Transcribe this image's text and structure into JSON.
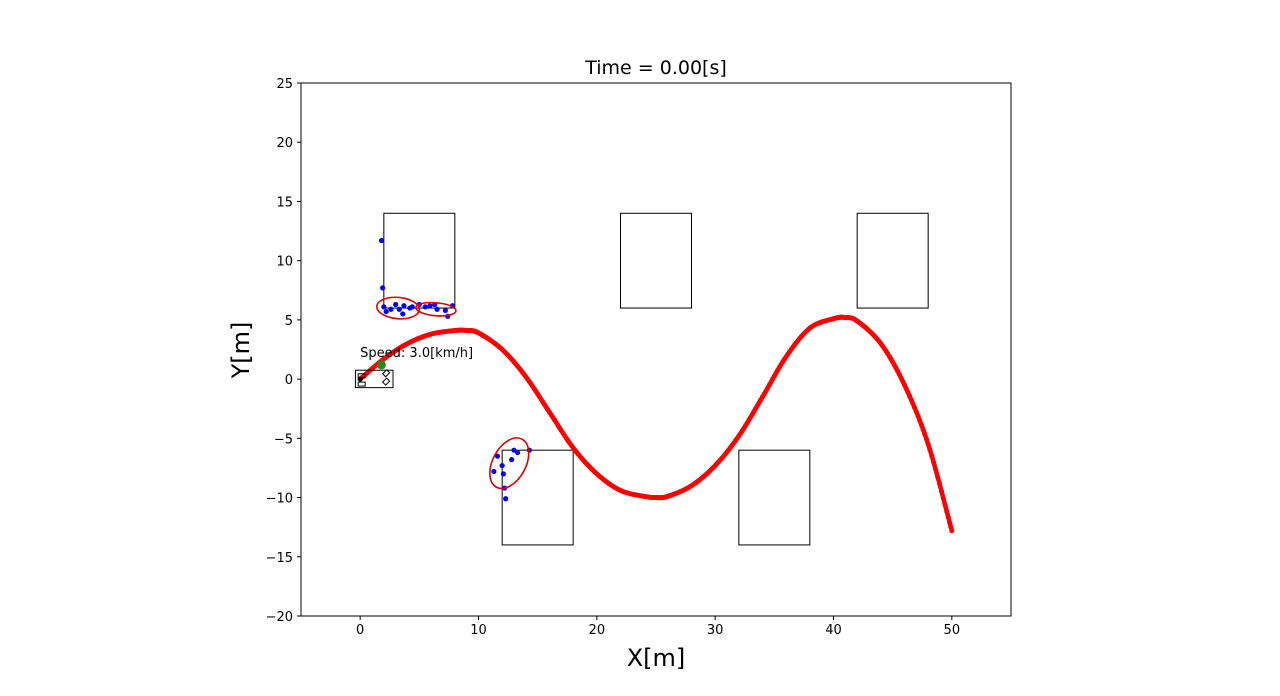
{
  "chart_data": {
    "type": "scatter",
    "title": "Time = 0.00[s]",
    "xlabel": "X[m]",
    "ylabel": "Y[m]",
    "xlim": [
      -5,
      55
    ],
    "ylim": [
      -20,
      25
    ],
    "xticks": [
      0,
      10,
      20,
      30,
      40,
      50
    ],
    "yticks": [
      -20,
      -15,
      -10,
      -5,
      0,
      5,
      10,
      15,
      20,
      25
    ],
    "grid": false,
    "annotation": "Speed: 3.0[km/h]",
    "colors": {
      "path": "#ff0000",
      "points": "#0000ff",
      "ellipse": "#dd0000",
      "vehicle_marker": "#228B22",
      "obstacle": "#000000"
    },
    "obstacles": [
      {
        "x0": 2,
        "x1": 8,
        "y0": 6,
        "y1": 14
      },
      {
        "x0": 22,
        "x1": 28,
        "y0": 6,
        "y1": 14
      },
      {
        "x0": 42,
        "x1": 48,
        "y0": 6,
        "y1": 14
      },
      {
        "x0": 12,
        "x1": 18,
        "y0": -14,
        "y1": -6
      },
      {
        "x0": 32,
        "x1": 38,
        "y0": -14,
        "y1": -6
      }
    ],
    "path": {
      "x": [
        0,
        2,
        4,
        6,
        8,
        9,
        10,
        12,
        14,
        16,
        18,
        20,
        22,
        24,
        25,
        26,
        28,
        30,
        32,
        34,
        36,
        38,
        40,
        41,
        42,
        44,
        46,
        48,
        50
      ],
      "y": [
        0,
        1.7,
        3.0,
        3.8,
        4.1,
        4.1,
        3.9,
        2.5,
        0.2,
        -2.8,
        -5.8,
        -8.0,
        -9.4,
        -9.9,
        -10.0,
        -9.9,
        -9.0,
        -7.3,
        -4.8,
        -1.5,
        1.9,
        4.3,
        5.1,
        5.2,
        4.9,
        3.0,
        -0.5,
        -5.5,
        -12.8
      ]
    },
    "scan_points": {
      "x": [
        1.8,
        1.9,
        2.0,
        2.2,
        2.6,
        3.0,
        3.3,
        3.6,
        3.7,
        4.2,
        4.4,
        5.0,
        5.5,
        5.9,
        6.3,
        6.5,
        7.2,
        7.4,
        7.8,
        11.3,
        11.6,
        12.0,
        12.1,
        12.2,
        12.3,
        12.8,
        13.0,
        13.3,
        14.3
      ],
      "y": [
        11.7,
        7.7,
        6.1,
        5.7,
        5.9,
        6.3,
        5.9,
        5.5,
        6.2,
        6.0,
        6.1,
        6.3,
        6.1,
        6.2,
        6.3,
        5.9,
        5.8,
        5.3,
        6.2,
        -7.8,
        -6.5,
        -7.3,
        -8.0,
        -9.2,
        -10.1,
        -6.8,
        -6.0,
        -6.2,
        -6.0
      ]
    },
    "ellipses": [
      {
        "cx": 3.2,
        "cy": 6.0,
        "rx": 1.8,
        "ry": 0.9,
        "angle_deg": -5
      },
      {
        "cx": 6.4,
        "cy": 5.9,
        "rx": 1.7,
        "ry": 0.55,
        "angle_deg": -5
      },
      {
        "cx": 12.6,
        "cy": -7.1,
        "rx": 2.3,
        "ry": 1.4,
        "angle_deg": 62
      }
    ],
    "vehicle": {
      "x": 0,
      "y": 0,
      "length": 2.5,
      "width": 1.3
    },
    "vehicle_marker": {
      "x": 1.8,
      "y": 1.2
    },
    "annotation_pos": {
      "x": 0,
      "y": 2.3
    }
  }
}
